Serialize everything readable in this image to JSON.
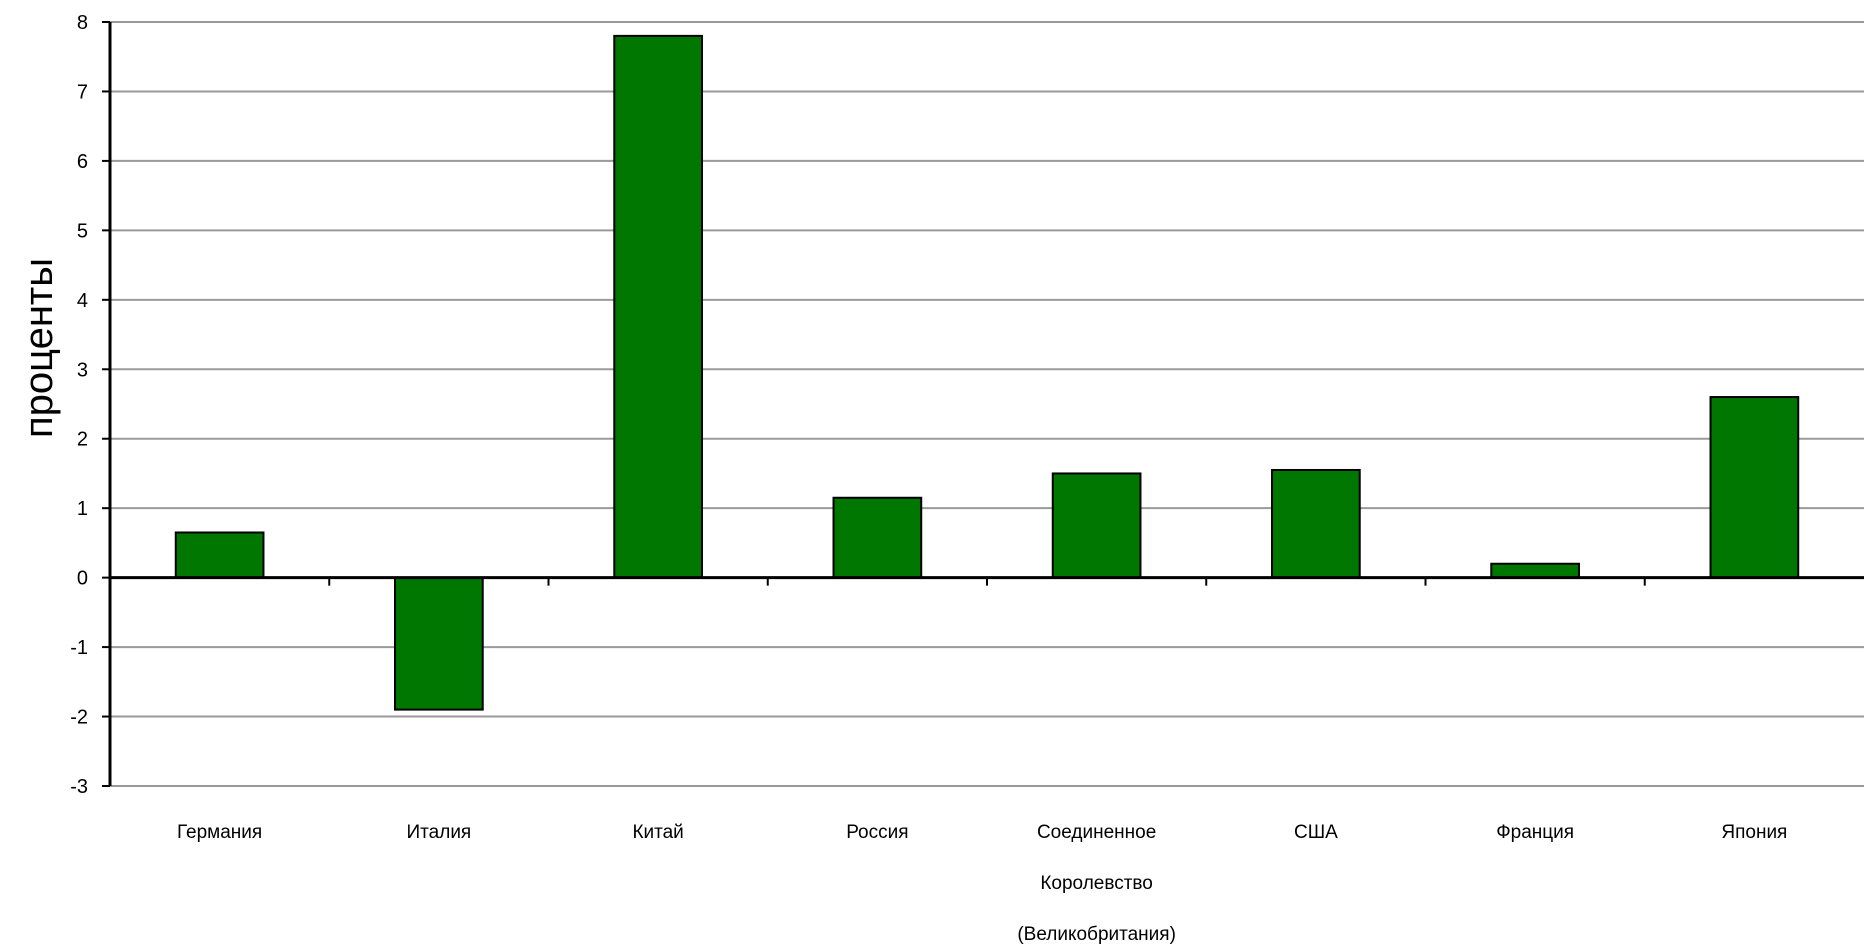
{
  "chart_data": {
    "type": "bar",
    "title": "",
    "xlabel": "",
    "ylabel": "проценты",
    "ylim": [
      -3,
      8
    ],
    "y_ticks": [
      8,
      7,
      6,
      5,
      4,
      3,
      2,
      1,
      0,
      -1,
      -2,
      -3
    ],
    "grid": true,
    "legend": "none",
    "bar_color": "#007700",
    "categories": [
      [
        "Германия"
      ],
      [
        "Италия"
      ],
      [
        "Китай"
      ],
      [
        "Россия"
      ],
      [
        "Соединенное",
        "Королевство",
        "(Великобритания)"
      ],
      [
        "США"
      ],
      [
        "Франция"
      ],
      [
        "Япония"
      ]
    ],
    "values": [
      0.65,
      -1.9,
      7.8,
      1.15,
      1.5,
      1.55,
      0.2,
      2.6
    ]
  }
}
